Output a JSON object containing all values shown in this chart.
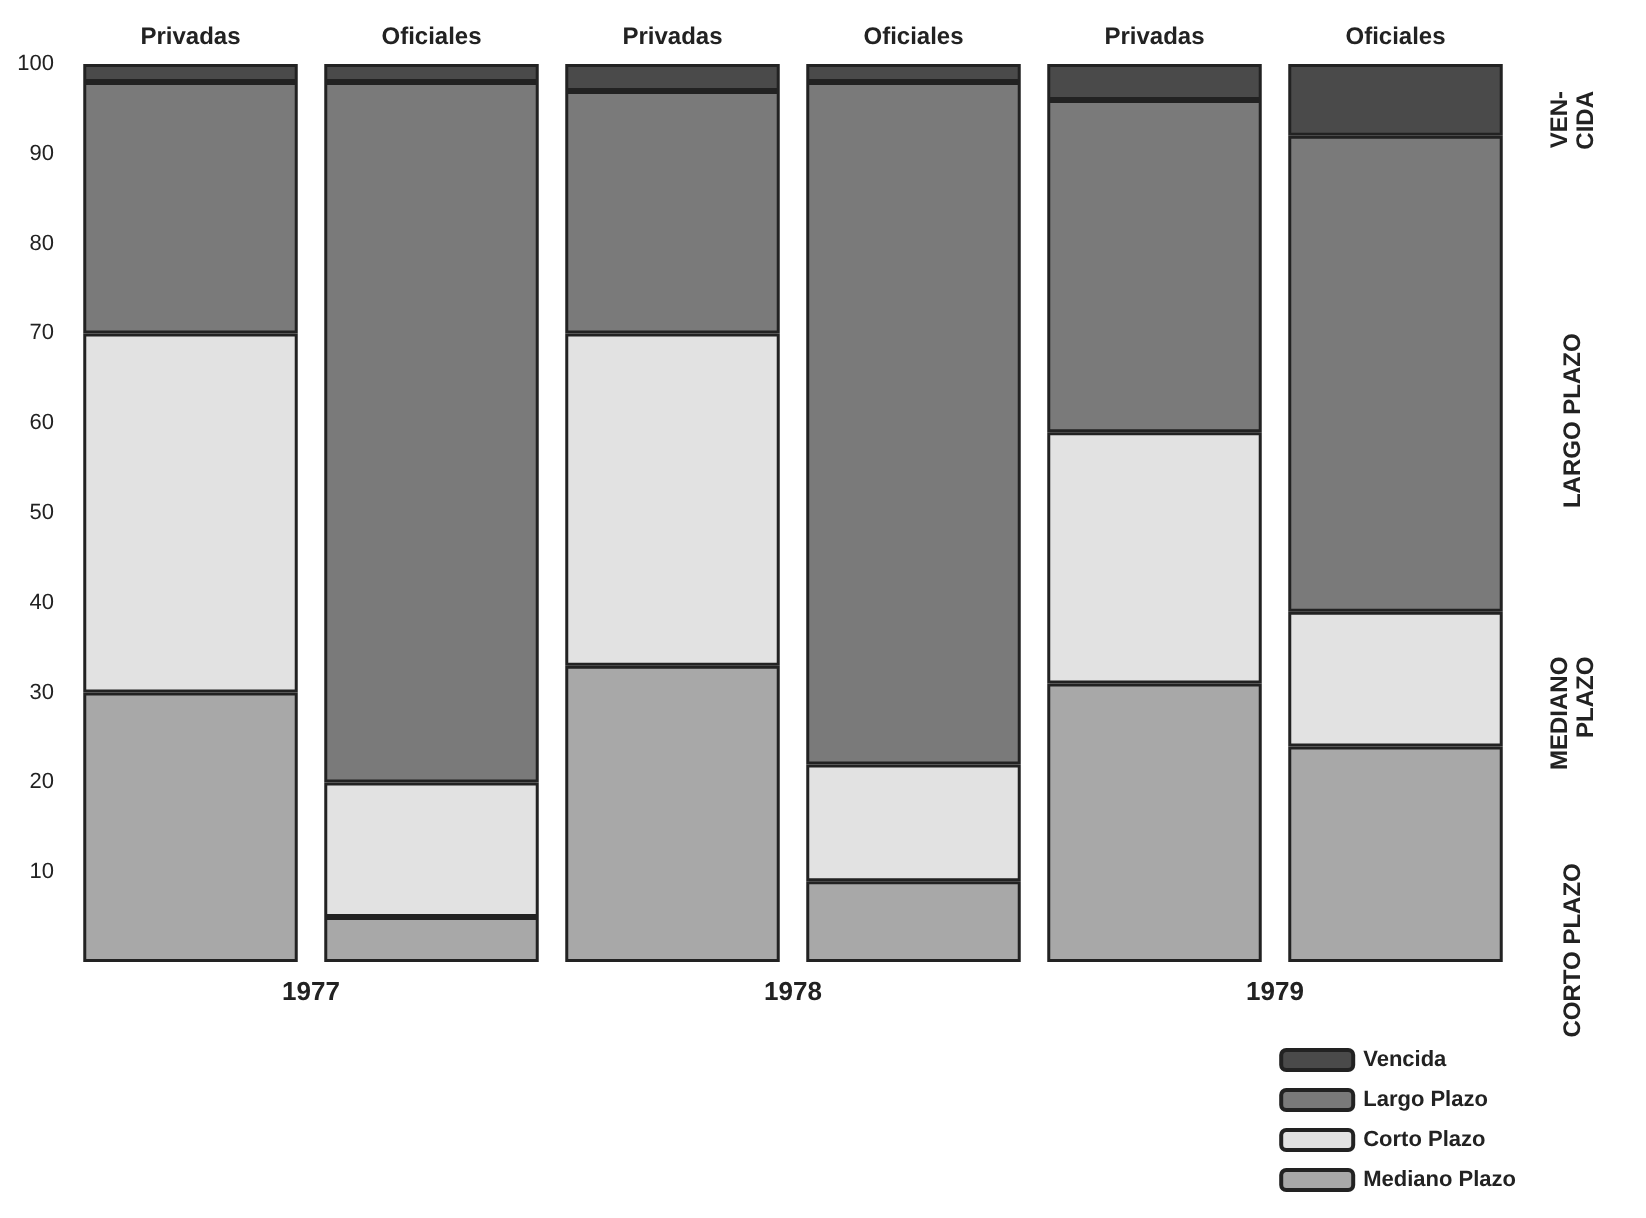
{
  "chart_data": {
    "type": "bar",
    "stacked": true,
    "categories": [
      "Privadas",
      "Oficiales",
      "Privadas",
      "Oficiales",
      "Privadas",
      "Oficiales"
    ],
    "series": [
      {
        "name": "Mediano Plazo",
        "color": "#a8a8a8",
        "values": [
          30,
          5,
          33,
          9,
          31,
          24
        ]
      },
      {
        "name": "Corto Plazo",
        "color": "#e2e2e2",
        "values": [
          40,
          15,
          37,
          13,
          28,
          15
        ]
      },
      {
        "name": "Largo Plazo",
        "color": "#7a7a7a",
        "values": [
          28,
          78,
          27,
          76,
          37,
          53
        ]
      },
      {
        "name": "Vencida",
        "color": "#4a4a4a",
        "values": [
          2,
          2,
          3,
          2,
          4,
          8
        ]
      }
    ],
    "ylim": [
      0,
      100
    ],
    "yticks": [
      10,
      20,
      30,
      40,
      50,
      60,
      70,
      80,
      90,
      100
    ],
    "grid": false,
    "legend": "bottom right",
    "annotations": [
      "1977",
      "1978",
      "1979",
      "VEN-\nCIDA",
      "LARGO PLAZO",
      "MEDIANO\nPLAZO",
      "CORTO PLAZO"
    ]
  }
}
